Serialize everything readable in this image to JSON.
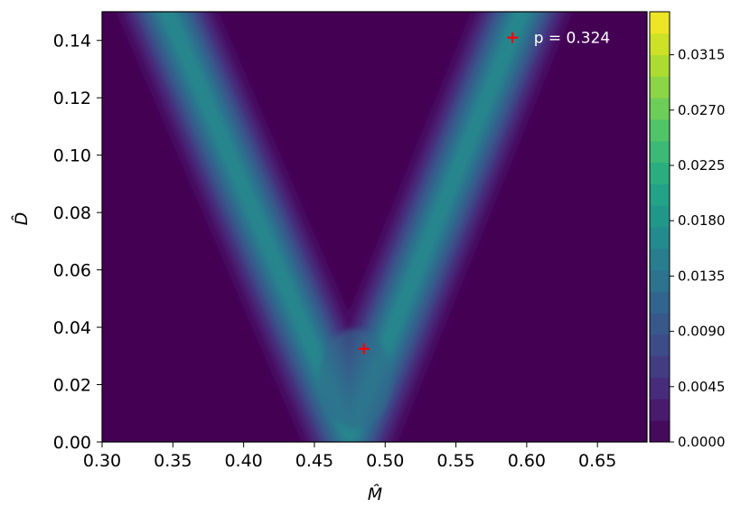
{
  "chart_data": {
    "type": "heatmap",
    "title": "",
    "xlabel": "M̂",
    "ylabel": "D̂",
    "xlim": [
      0.3,
      0.685
    ],
    "ylim": [
      0.0,
      0.15
    ],
    "xticks": [
      "0.30",
      "0.35",
      "0.40",
      "0.45",
      "0.50",
      "0.55",
      "0.60",
      "0.65"
    ],
    "yticks": [
      "0.00",
      "0.02",
      "0.04",
      "0.06",
      "0.08",
      "0.10",
      "0.12",
      "0.14"
    ],
    "colorbar": {
      "range": [
        0.0,
        0.035
      ],
      "ticks": [
        "0.0000",
        "0.0045",
        "0.0090",
        "0.0135",
        "0.0180",
        "0.0225",
        "0.0270",
        "0.0315"
      ],
      "colormap": "viridis"
    },
    "ridge": {
      "vertex": {
        "x": 0.475,
        "y": 0.0
      },
      "left_branch_top": {
        "x": 0.335,
        "y": 0.15
      },
      "right_branch_top": {
        "x": 0.607,
        "y": 0.15
      },
      "peak_value": 0.0175
    },
    "markers": [
      {
        "x": 0.485,
        "y": 0.0325,
        "color": "#ff0000",
        "symbol": "plus"
      },
      {
        "x": 0.59,
        "y": 0.141,
        "color": "#ff0000",
        "symbol": "plus"
      }
    ],
    "annotation": {
      "text": "p = 0.324",
      "x": 0.605,
      "y": 0.141
    }
  }
}
